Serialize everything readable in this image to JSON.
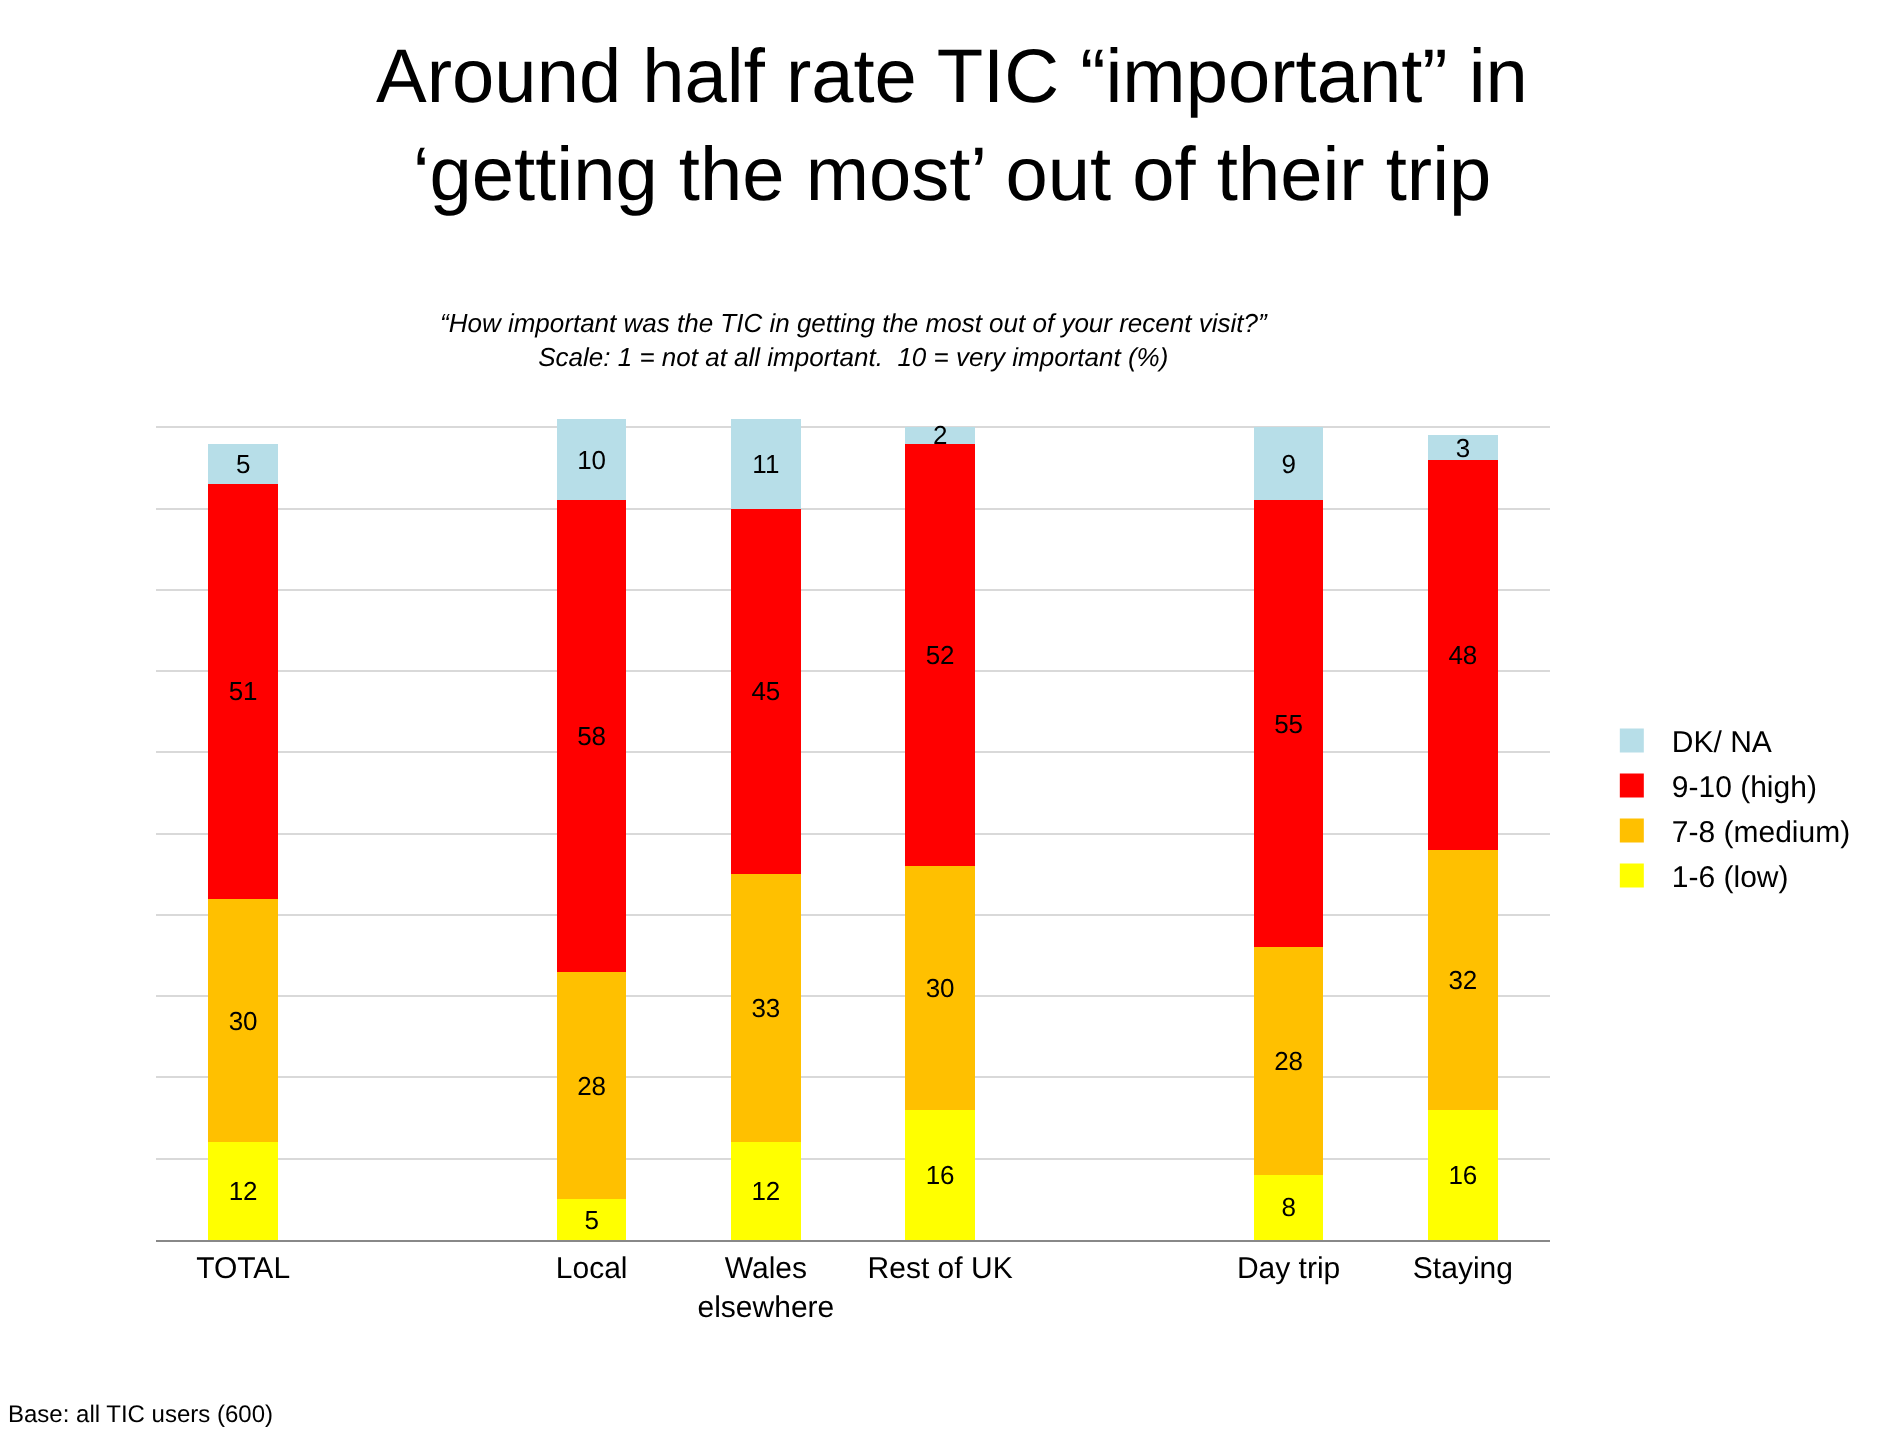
{
  "chart_data": {
    "type": "bar",
    "stacked": true,
    "title": "Around half rate TIC “important” in\n‘getting the most’ out of their trip",
    "subtitle": "“How important was the TIC in getting the most out of your recent visit?”\nScale: 1 = not at all important.  10 = very important (%)",
    "categories": [
      "TOTAL",
      null,
      "Local",
      "Wales elsewhere",
      "Rest of UK",
      null,
      "Day trip",
      "Staying"
    ],
    "series": [
      {
        "name": "1-6 (low)",
        "color": "#ffff00",
        "values": [
          12,
          null,
          5,
          12,
          16,
          null,
          8,
          16
        ]
      },
      {
        "name": "7-8 (medium)",
        "color": "#ffc000",
        "values": [
          30,
          null,
          28,
          33,
          30,
          null,
          28,
          32
        ]
      },
      {
        "name": "9-10 (high)",
        "color": "#ff0000",
        "values": [
          51,
          null,
          58,
          45,
          52,
          null,
          55,
          48
        ]
      },
      {
        "name": "DK/ NA",
        "color": "#b7dee8",
        "values": [
          5,
          null,
          10,
          11,
          2,
          null,
          9,
          3
        ]
      }
    ],
    "yticks": [
      {
        "value": 0,
        "label": null
      },
      {
        "value": 10,
        "label": null
      },
      {
        "value": 20,
        "label": null
      },
      {
        "value": 30,
        "label": null
      },
      {
        "value": 40,
        "label": null
      },
      {
        "value": 50,
        "label": null
      },
      {
        "value": 60,
        "label": null
      },
      {
        "value": 70,
        "label": null
      },
      {
        "value": 80,
        "label": null
      },
      {
        "value": 90,
        "label": null
      },
      {
        "value": 100,
        "label": null
      }
    ],
    "tick_labels": "x",
    "grid": "y",
    "legend": "right",
    "data_labels": true,
    "annotations": [
      "Base: all TIC users (600)"
    ]
  }
}
